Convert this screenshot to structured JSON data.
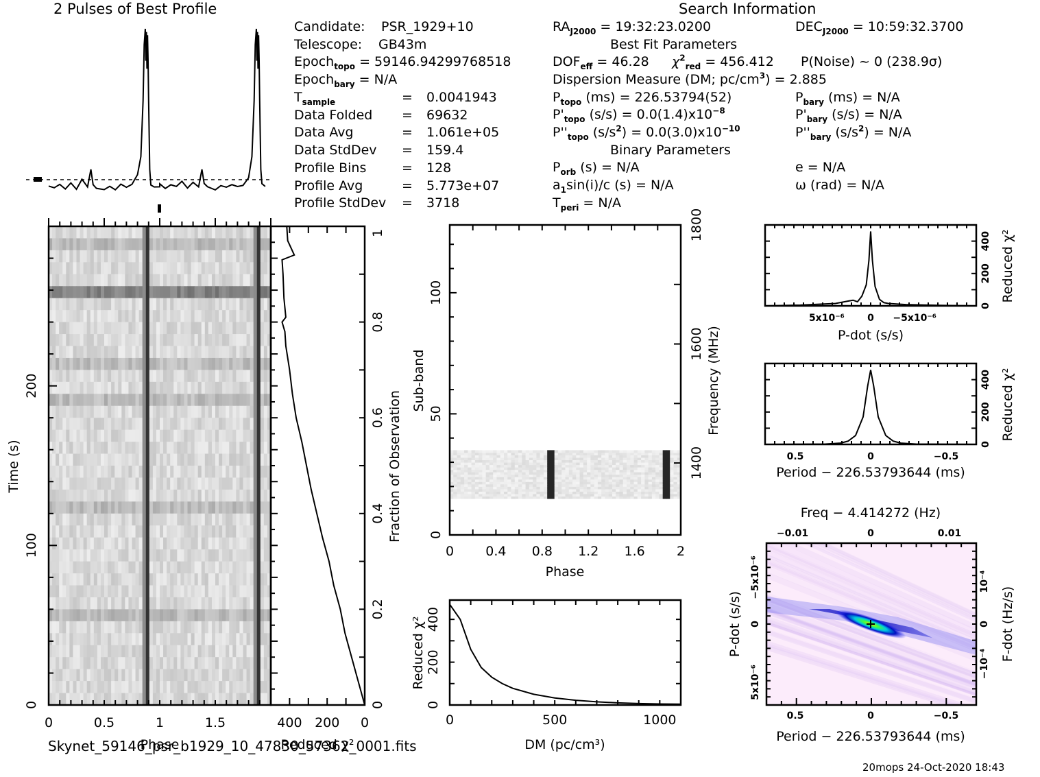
{
  "profile_title": "2 Pulses of Best Profile",
  "search_info_title": "Search Information",
  "candidate_info": {
    "candidate_label": "Candidate:",
    "candidate_value": "PSR_1929+10",
    "telescope_label": "Telescope:",
    "telescope_value": "GB43m",
    "epoch_topo_label": "Epoch",
    "epoch_topo_sub": "topo",
    "epoch_topo_value": "= 59146.94299768518",
    "epoch_bary_label": "Epoch",
    "epoch_bary_sub": "bary",
    "epoch_bary_value": "= N/A",
    "rows": [
      {
        "label": "T",
        "sub": "sample",
        "value": "0.0041943"
      },
      {
        "label": "Data Folded",
        "sub": "",
        "value": "69632"
      },
      {
        "label": "Data Avg",
        "sub": "",
        "value": "1.061e+05"
      },
      {
        "label": "Data StdDev",
        "sub": "",
        "value": "159.4"
      },
      {
        "label": "Profile Bins",
        "sub": "",
        "value": "128"
      },
      {
        "label": "Profile Avg",
        "sub": "",
        "value": "5.773e+07"
      },
      {
        "label": "Profile StdDev",
        "sub": "",
        "value": "3718"
      }
    ],
    "equals": "="
  },
  "search_info": {
    "ra": {
      "label": "RA",
      "sub": "J2000",
      "value": "= 19:32:23.0200"
    },
    "dec": {
      "label": "DEC",
      "sub": "J2000",
      "value": "= 10:59:32.3700"
    },
    "best_fit_title": "Best Fit Parameters",
    "dof": {
      "label": "DOF",
      "sub": "eff",
      "value": "= 46.28"
    },
    "chi2": {
      "label": "χ",
      "sup": "2",
      "sub": "red",
      "value": "= 456.412"
    },
    "pnoise": "P(Noise) ~ 0    (238.9σ)",
    "dm": {
      "label": "Dispersion Measure (DM; pc/cm",
      "sup": "3",
      "value": ") = 2.885"
    },
    "p_topo": {
      "label": "P",
      "sub": "topo",
      "value": "(ms) =  226.53794(52)"
    },
    "pd_topo": {
      "label": "P'",
      "sub": "topo",
      "value": "(s/s) = 0.0(1.4)x10",
      "exp": "−8"
    },
    "pdd_topo": {
      "label": "P''",
      "sub": "topo",
      "value": "(s/s",
      "sup": "2",
      "value2": ") = 0.0(3.0)x10",
      "exp": "−10"
    },
    "p_bary": {
      "label": "P",
      "sub": "bary",
      "value": "(ms) = N/A"
    },
    "pd_bary": {
      "label": "P'",
      "sub": "bary",
      "value": "(s/s) = N/A"
    },
    "pdd_bary": {
      "label": "P''",
      "sub": "bary",
      "value": "(s/s",
      "sup": "2",
      "value2": ") = N/A"
    },
    "binary_title": "Binary Parameters",
    "p_orb": {
      "label": "P",
      "sub": "orb",
      "value": "(s) = N/A"
    },
    "a1": {
      "label": "a",
      "sub": "1",
      "value": "sin(i)/c (s) = N/A"
    },
    "t_peri": {
      "label": "T",
      "sub": "peri",
      "value": "= N/A"
    },
    "e": "e = N/A",
    "omega": "ω (rad) = N/A"
  },
  "filename": "Skynet_59146_psr_b1929_10_47830_57362_0001.fits",
  "footer_stamp": "20mops 24-Oct-2020 18:43",
  "chart_data": [
    {
      "id": "profile",
      "type": "line",
      "title": "2 Pulses of Best Profile",
      "xlabel": "",
      "ylabel": "",
      "xlim": [
        0,
        2
      ],
      "pulse_phase": 0.88,
      "x": [
        0.0,
        0.05,
        0.1,
        0.15,
        0.2,
        0.25,
        0.3,
        0.35,
        0.38,
        0.4,
        0.43,
        0.5,
        0.55,
        0.6,
        0.65,
        0.7,
        0.75,
        0.8,
        0.83,
        0.85,
        0.86,
        0.87,
        0.875,
        0.88,
        0.885,
        0.89,
        0.895,
        0.9,
        0.91,
        0.92,
        0.95,
        1.0
      ],
      "y_relative": [
        0.02,
        0.0,
        0.03,
        0.01,
        0.04,
        0.0,
        0.05,
        0.02,
        0.12,
        0.03,
        0.01,
        0.0,
        0.01,
        0.0,
        0.02,
        0.01,
        0.02,
        0.08,
        0.2,
        0.55,
        0.9,
        1.0,
        0.8,
        0.98,
        0.75,
        0.96,
        0.8,
        0.55,
        0.12,
        0.03,
        0.02,
        0.02
      ]
    },
    {
      "id": "time-phase",
      "type": "heatmap",
      "xlabel": "Phase",
      "ylabel": "Time (s)",
      "xlim": [
        0,
        2
      ],
      "ylim": [
        0,
        300
      ],
      "xticks": [
        "0",
        "0.5",
        "1",
        "1.5"
      ],
      "yticks": [
        "0",
        "100",
        "200"
      ],
      "pulse_phase": 0.88
    },
    {
      "id": "chi2-vs-fraction",
      "type": "line",
      "xlabel": "Reduced χ²",
      "ylabel": "Fraction of Observation",
      "xlim": [
        500,
        0
      ],
      "ylim": [
        0,
        1
      ],
      "xticks": [
        "400",
        "200",
        "0"
      ],
      "yticks": [
        "0",
        "0.2",
        "0.4",
        "0.6",
        "0.8",
        "1"
      ],
      "fraction": [
        0,
        0.05,
        0.1,
        0.15,
        0.2,
        0.25,
        0.3,
        0.35,
        0.4,
        0.45,
        0.5,
        0.55,
        0.6,
        0.65,
        0.7,
        0.75,
        0.78,
        0.8,
        0.81,
        0.85,
        0.9,
        0.93,
        0.94,
        0.97,
        1.0
      ],
      "chi2": [
        0,
        35,
        70,
        105,
        130,
        165,
        190,
        225,
        255,
        285,
        310,
        335,
        365,
        385,
        400,
        420,
        425,
        440,
        420,
        430,
        435,
        440,
        375,
        410,
        415
      ]
    },
    {
      "id": "subbands",
      "type": "heatmap",
      "xlabel": "Phase",
      "ylabel": "Sub-band",
      "y2label": "Frequency (MHz)",
      "xlim": [
        0,
        2
      ],
      "ylim": [
        0,
        128
      ],
      "xticks": [
        "0",
        "0.4",
        "0.8",
        "1.2",
        "1.6",
        "2"
      ],
      "yticks": [
        "0",
        "50",
        "100"
      ],
      "y2ticks": [
        "1400",
        "1600",
        "1800"
      ],
      "active_subbands": [
        15,
        35
      ],
      "pulse_phase": 0.88
    },
    {
      "id": "chi2-vs-dm",
      "type": "line",
      "xlabel": "DM (pc/cm³)",
      "ylabel": "Reduced χ²",
      "xlim": [
        0,
        1100
      ],
      "ylim": [
        0,
        500
      ],
      "xticks": [
        "0",
        "500",
        "1000"
      ],
      "yticks": [
        "0",
        "200",
        "400"
      ],
      "x": [
        0,
        50,
        100,
        150,
        200,
        250,
        300,
        400,
        500,
        600,
        700,
        800,
        900,
        1000,
        1100
      ],
      "y": [
        470,
        400,
        260,
        175,
        130,
        100,
        78,
        50,
        33,
        22,
        15,
        10,
        7,
        5,
        4
      ]
    },
    {
      "id": "chi2-vs-pdot",
      "type": "line",
      "xlabel": "P-dot (s/s)",
      "ylabel": "Reduced χ²",
      "xlim": [
        1.2e-05,
        -1.2e-05
      ],
      "ylim": [
        0,
        500
      ],
      "xticks": [
        "5x10⁻⁶",
        "0",
        "−5x10⁻⁶"
      ],
      "yticks": [
        "0",
        "200",
        "400"
      ],
      "x": [
        1.2e-05,
        8e-06,
        4e-06,
        2.5e-06,
        2e-06,
        1.5e-06,
        1e-06,
        5e-07,
        2e-07,
        0,
        -2e-07,
        -5e-07,
        -1e-06,
        -1.5e-06,
        -2e-06,
        -4e-06,
        -8e-06,
        -1.2e-05
      ],
      "y": [
        0,
        5,
        15,
        30,
        35,
        25,
        60,
        130,
        280,
        460,
        280,
        120,
        40,
        20,
        15,
        8,
        3,
        0
      ]
    },
    {
      "id": "chi2-vs-period",
      "type": "line",
      "xlabel": "Period − 226.53793644 (ms)",
      "ylabel": "Reduced χ²",
      "xlim": [
        0.7,
        -0.7
      ],
      "ylim": [
        0,
        500
      ],
      "xticks": [
        "0.5",
        "0",
        "−0.5"
      ],
      "yticks": [
        "0",
        "200",
        "400"
      ],
      "x": [
        0.7,
        0.3,
        0.2,
        0.15,
        0.1,
        0.05,
        0.02,
        0,
        -0.02,
        -0.05,
        -0.1,
        -0.15,
        -0.2,
        -0.3,
        -0.7
      ],
      "y": [
        0,
        2,
        8,
        20,
        55,
        170,
        360,
        460,
        360,
        170,
        55,
        20,
        8,
        2,
        0
      ]
    },
    {
      "id": "pdot-vs-period",
      "type": "heatmap",
      "title": "Freq − 4.414272 (Hz)",
      "xlabel": "Period − 226.53793644 (ms)",
      "ylabel": "P-dot (s/s)",
      "y2label": "F-dot (Hz/s)",
      "xlim": [
        0.7,
        -0.7
      ],
      "ylim": [
        1e-05,
        -1e-05
      ],
      "xticks": [
        "0.5",
        "0",
        "−0.5"
      ],
      "x2ticks": [
        "−0.01",
        "0",
        "0.01"
      ],
      "yticks": [
        "5x10⁻⁶",
        "0",
        "−5x10⁻⁶"
      ],
      "y2ticks": [
        "−10⁻⁴",
        "0",
        "10⁻⁴"
      ],
      "best_fit": [
        0,
        0
      ]
    }
  ]
}
